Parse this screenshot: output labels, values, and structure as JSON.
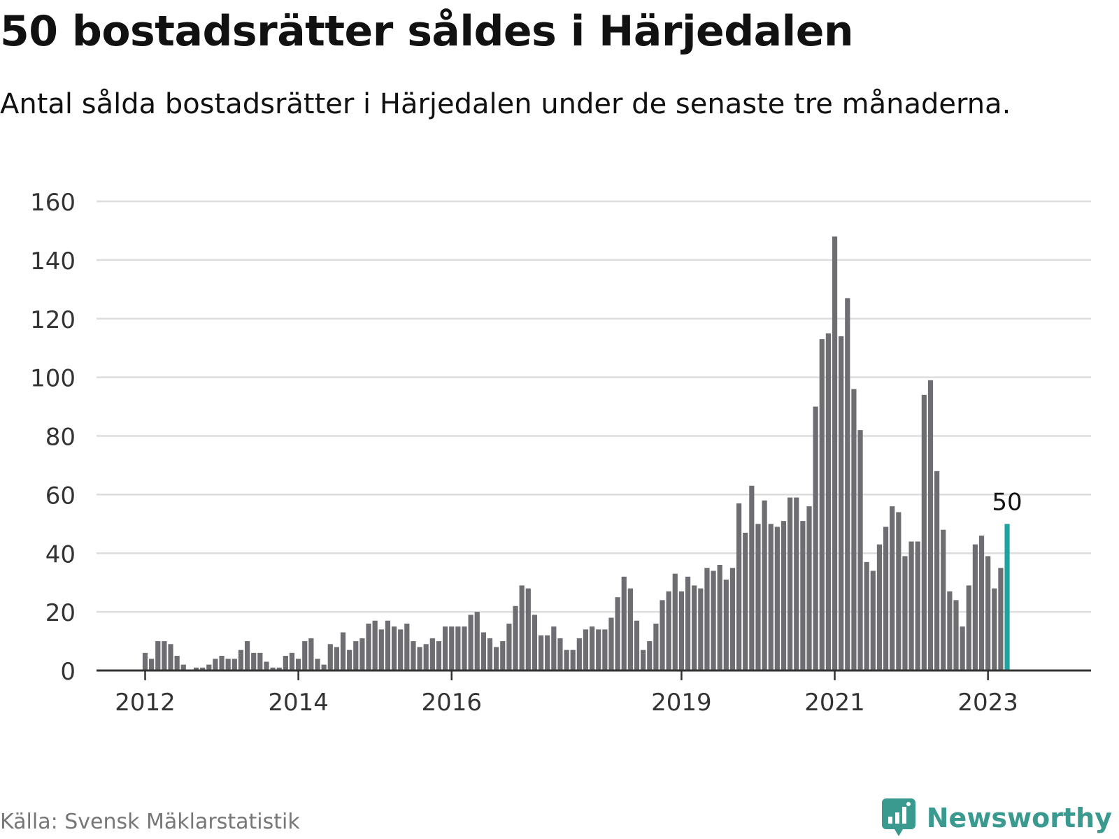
{
  "header": {
    "title": "50 bostadsrätter såldes i Härjedalen",
    "subtitle": "Antal sålda bostadsrätter i Härjedalen under de senaste tre månaderna."
  },
  "footer": {
    "source": "Källa: Svensk Mäklarstatistik",
    "brand": "Newsworthy",
    "brand_icon": "newsworthy-logo-icon"
  },
  "colors": {
    "bar": "#6e6d72",
    "highlight": "#20a39e",
    "grid": "#dddddd",
    "axis": "#333333",
    "brand": "#3a9a90"
  },
  "chart_data": {
    "type": "bar",
    "title": "50 bostadsrätter såldes i Härjedalen",
    "subtitle": "Antal sålda bostadsrätter i Härjedalen under de senaste tre månaderna.",
    "ylim": [
      0,
      160
    ],
    "y_ticks": [
      "0",
      "20",
      "40",
      "60",
      "80",
      "100",
      "120",
      "140",
      "160"
    ],
    "grid": true,
    "x_tick_labels": [
      {
        "label": "2012",
        "bar_index": 0
      },
      {
        "label": "2014",
        "bar_index": 24
      },
      {
        "label": "2016",
        "bar_index": 48
      },
      {
        "label": "2019",
        "bar_index": 84
      },
      {
        "label": "2021",
        "bar_index": 108
      },
      {
        "label": "2023",
        "bar_index": 132
      }
    ],
    "highlight_label": "50",
    "values": [
      6,
      4,
      10,
      10,
      9,
      5,
      2,
      0,
      1,
      1,
      2,
      4,
      5,
      4,
      4,
      7,
      10,
      6,
      6,
      3,
      1,
      1,
      5,
      6,
      4,
      10,
      11,
      4,
      2,
      9,
      8,
      13,
      7,
      10,
      11,
      16,
      17,
      14,
      17,
      15,
      14,
      16,
      10,
      8,
      9,
      11,
      10,
      15,
      15,
      15,
      15,
      19,
      20,
      13,
      11,
      8,
      10,
      16,
      22,
      29,
      28,
      19,
      12,
      12,
      15,
      11,
      7,
      7,
      11,
      14,
      15,
      14,
      14,
      18,
      25,
      32,
      28,
      17,
      7,
      10,
      16,
      24,
      27,
      33,
      27,
      32,
      29,
      28,
      35,
      34,
      36,
      31,
      35,
      57,
      47,
      63,
      50,
      58,
      50,
      49,
      51,
      59,
      59,
      51,
      56,
      90,
      113,
      115,
      148,
      114,
      127,
      96,
      82,
      37,
      34,
      43,
      49,
      56,
      54,
      39,
      44,
      44,
      94,
      99,
      68,
      48,
      27,
      24,
      15,
      29,
      43,
      46,
      39,
      28,
      35,
      50
    ]
  }
}
